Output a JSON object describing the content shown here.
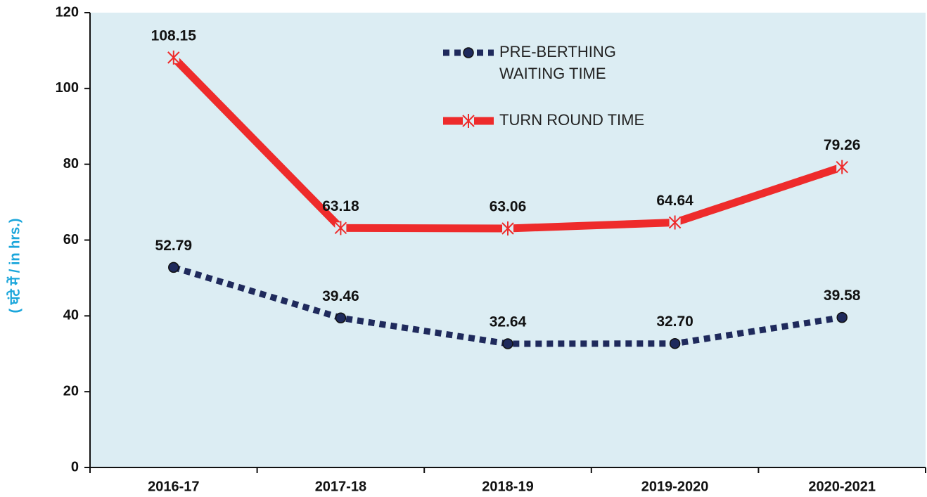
{
  "chart_data": {
    "type": "line",
    "y_label": "( घंटे में / in hrs.)",
    "categories": [
      "2016-17",
      "2017-18",
      "2018-19",
      "2019-2020",
      "2020-2021"
    ],
    "series": [
      {
        "name": "PRE-BERTHING WAITING TIME",
        "color": "#1f2a5c",
        "marker": "circle",
        "values": [
          52.79,
          39.46,
          32.64,
          32.7,
          39.58
        ],
        "value_labels": [
          "52.79",
          "39.46",
          "32.64",
          "32.70",
          "39.58"
        ]
      },
      {
        "name": "TURN ROUND TIME",
        "color": "#ee2b2b",
        "marker": "star",
        "values": [
          108.15,
          63.18,
          63.06,
          64.64,
          79.26
        ],
        "value_labels": [
          "108.15",
          "63.18",
          "63.06",
          "64.64",
          "79.26"
        ]
      }
    ],
    "ylim": [
      0,
      120
    ],
    "yticks": [
      0,
      20,
      40,
      60,
      80,
      100,
      120
    ],
    "grid": false
  }
}
